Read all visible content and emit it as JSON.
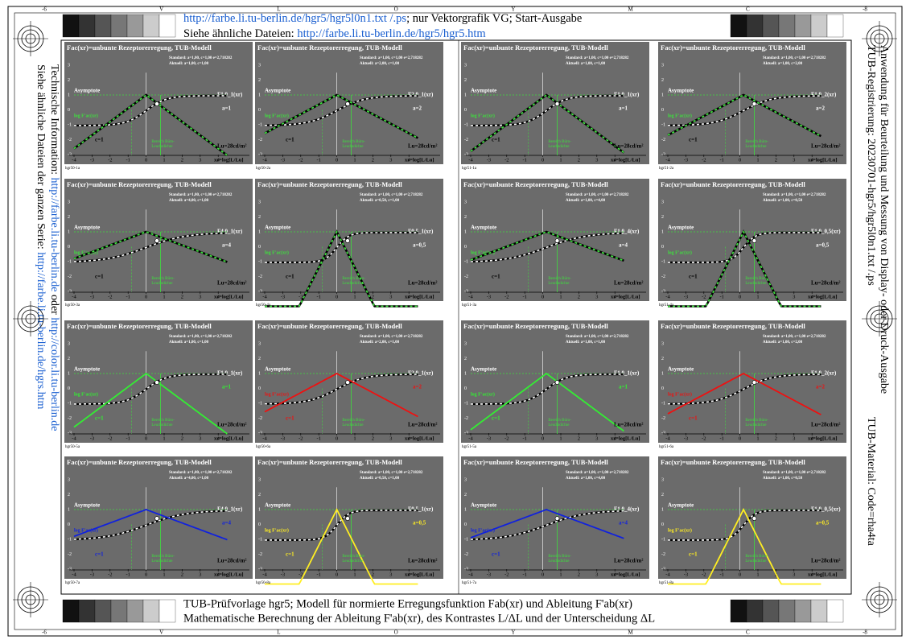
{
  "header": {
    "line1_link": "http://farbe.li.tu-berlin.de/hgr5/hgr5l0n1.txt /.ps",
    "line1_rest": "; nur Vektorgrafik VG; Start-Ausgabe",
    "line2_text": "Siehe ähnliche Dateien: ",
    "line2_link": "http://farbe.li.tu-berlin.de/hgr5/hgr5.htm"
  },
  "left_side": {
    "line1_text": "Siehe ähnliche Dateien der ganzen Serie: ",
    "line1_link": "http://farbe.li.tu-berlin.de/hgrs.htm",
    "line2_text": "Technische Information: ",
    "line2_link": "http://farbe.li.tu-berlin.de",
    "line2_mid": " oder ",
    "line2_link2": "http://color.li.tu-berlin.de"
  },
  "right_side": {
    "line1": "TUB-Registrierung: 20230701-hgr5/hgr5l0n1.txt /.ps",
    "line2": "Anwendung für Beurteilung und Messung von Display- oder Druck-Ausgabe",
    "line3": "TUB-Material: Code=rha4ta"
  },
  "footer": {
    "line1": "TUB-Prüfvorlage hgr5; Modell für normierte Erregungsfunktion Fab(xr) und Ableitung F'ab(xr)",
    "line2": "Mathematische Berechnung der Ableitung F'ab(xr), des Kontrastes L/ΔL und der Unterscheidung ΔL"
  },
  "frame_marks": [
    "-6",
    "V",
    "L",
    "O",
    "Y",
    "M",
    "C",
    "-8"
  ],
  "panel_common": {
    "title": "Fac(xr)=unbunte Rezeptorerregung, TUB-Modell",
    "standard": "Standard: a=1,00, c=1,00 e=2,718282",
    "asymptote": "Asymptote",
    "c_label": "c=1",
    "lu": "Lu=28cd/m²",
    "range": "Bereich Büro-",
    "range2": "Leuchtdichte",
    "x_label": "xr=log[L/Lu]",
    "log_label": "log F'ac(xr)",
    "xticks": [
      "-4",
      "-3",
      "-2",
      "-1",
      "0",
      "1",
      "2",
      "3",
      "4"
    ],
    "yticks": [
      "3",
      "2",
      "1",
      "0",
      "-1",
      "-2",
      "-3"
    ]
  },
  "panels": [
    {
      "id": "hgr50-1a",
      "aktuell": "Aktuell: a=1,00, c=1,00",
      "a_label": "a=1",
      "f_label": "F1,0_1(xr)",
      "color": "#3ee03e",
      "style": "dashed"
    },
    {
      "id": "hgr50-2a",
      "aktuell": "Aktuell: a=2,00, c=1,00",
      "a_label": "a=2",
      "f_label": "F2,0_1(xr)",
      "color": "#3ee03e",
      "style": "dashed"
    },
    {
      "id": "hgr50-3a",
      "aktuell": "Aktuell: a=4,00, c=1,00",
      "a_label": "a=4",
      "f_label": "F4,0_1(xr)",
      "color": "#3ee03e",
      "style": "dashed"
    },
    {
      "id": "hgr50-4a",
      "aktuell": "Aktuell: a=0,50, c=1,00",
      "a_label": "a=0,5",
      "f_label": "F0,5_1(xr)",
      "color": "#3ee03e",
      "style": "dashed"
    },
    {
      "id": "hgr50-5a",
      "aktuell": "Aktuell: a=1,00, c=1,00",
      "a_label": "a=1",
      "f_label": "F1,0_1(xr)",
      "color": "#33ee33",
      "style": "solid"
    },
    {
      "id": "hgr50-6a",
      "aktuell": "Aktuell: a=2,00, c=1,00",
      "a_label": "a=2",
      "f_label": "F2,0_1(xr)",
      "color": "#ee1111",
      "style": "solid"
    },
    {
      "id": "hgr50-7a",
      "aktuell": "Aktuell: a=4,00, c=1,00",
      "a_label": "a=4",
      "f_label": "F4,0_1(xr)",
      "color": "#1122dd",
      "style": "solid"
    },
    {
      "id": "hgr50-8a",
      "aktuell": "Aktuell: a=0,50, c=1,00",
      "a_label": "a=0,5",
      "f_label": "F0,5_1(xr)",
      "color": "#ffee22",
      "style": "solid"
    },
    {
      "id": "hgr51-1a",
      "aktuell": "Aktuell: a=1,00, c=1,00",
      "a_label": "a=1",
      "f_label": "F1,0_1(xr)",
      "color": "#3ee03e",
      "style": "dashed"
    },
    {
      "id": "hgr51-2a",
      "aktuell": "Aktuell: a=1,00, c=2,00",
      "a_label": "a=2",
      "f_label": "F1,0_2(xr)",
      "color": "#3ee03e",
      "style": "dashed"
    },
    {
      "id": "hgr51-3a",
      "aktuell": "Aktuell: a=1,00, c=4,00",
      "a_label": "a=4",
      "f_label": "F1,0_4(xr)",
      "color": "#3ee03e",
      "style": "dashed"
    },
    {
      "id": "hgr51-4a",
      "aktuell": "Aktuell: a=1,00, c=0,50",
      "a_label": "a=0,5",
      "f_label": "F1,0_0,5(xr)",
      "color": "#3ee03e",
      "style": "dashed"
    },
    {
      "id": "hgr51-5a",
      "aktuell": "Aktuell: a=1,00, c=1,00",
      "a_label": "a=1",
      "f_label": "F1,0_1(xr)",
      "color": "#33ee33",
      "style": "solid"
    },
    {
      "id": "hgr51-6a",
      "aktuell": "Aktuell: a=1,00, c=2,00",
      "a_label": "a=2",
      "f_label": "F1,0_2(xr)",
      "color": "#ee1111",
      "style": "solid"
    },
    {
      "id": "hgr51-7a",
      "aktuell": "Aktuell: a=1,00, c=4,00",
      "a_label": "a=4",
      "f_label": "F1,0_4(xr)",
      "color": "#1122dd",
      "style": "solid"
    },
    {
      "id": "hgr51-8a",
      "aktuell": "Aktuell: a=1,00, c=0,50",
      "a_label": "a=0,5",
      "f_label": "F1,0_0,5(xr)",
      "color": "#ffee22",
      "style": "solid"
    }
  ]
}
